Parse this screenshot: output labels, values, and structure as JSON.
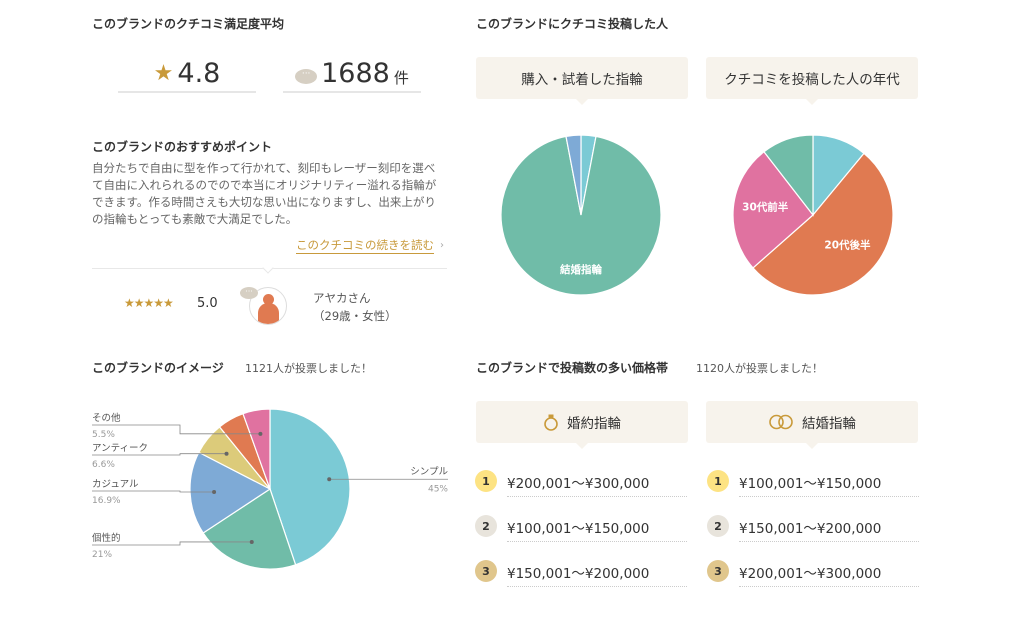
{
  "satisfaction": {
    "heading": "このブランドのクチコミ満足度平均",
    "rating": "4.8",
    "review_count": "1688",
    "review_unit": "件",
    "star_color": "#c99a3a"
  },
  "recommend": {
    "heading": "このブランドのおすすめポイント",
    "text": "自分たちで自由に型を作って行かれて、刻印もレーザー刻印を選べて自由に入れられるのでので本当にオリジナリティー溢れる指輪ができます。作る時間さえも大切な思い出になりますし、出来上がりの指輪もとっても素敵で大満足でした。",
    "read_more": "このクチコミの続きを読む",
    "reviewer_stars": "★★★★★",
    "reviewer_score": "5.0",
    "reviewer_name": "アヤカさん",
    "reviewer_info": "（29歳・女性）"
  },
  "posters": {
    "heading": "このブランドにクチコミ投稿した人",
    "tab_ring": "購入・試着した指輪",
    "tab_age": "クチコミを投稿した人の年代"
  },
  "image_section": {
    "heading": "このブランドのイメージ",
    "votes": "1121人が投票しました！"
  },
  "price_section": {
    "heading": "このブランドで投稿数の多い価格帯",
    "votes": "1120人が投票しました！",
    "engagement": {
      "label": "婚約指輪",
      "ranks": [
        {
          "rank": "1",
          "price": "¥200,001〜¥300,000"
        },
        {
          "rank": "2",
          "price": "¥100,001〜¥150,000"
        },
        {
          "rank": "3",
          "price": "¥150,001〜¥200,000"
        }
      ]
    },
    "wedding": {
      "label": "結婚指輪",
      "ranks": [
        {
          "rank": "1",
          "price": "¥100,001〜¥150,000"
        },
        {
          "rank": "2",
          "price": "¥150,001〜¥200,000"
        },
        {
          "rank": "3",
          "price": "¥200,001〜¥300,000"
        }
      ]
    },
    "rank_colors": [
      "#fde383",
      "#e8e4dc",
      "#e0c68c"
    ]
  },
  "chart_data": [
    {
      "type": "pie",
      "title": "購入・試着した指輪",
      "slices": [
        {
          "label": "",
          "value": 3,
          "color": "#7bcad5"
        },
        {
          "label": "結婚指輪",
          "value": 94,
          "color": "#70bca8"
        },
        {
          "label": "",
          "value": 3,
          "color": "#7eaad6"
        }
      ]
    },
    {
      "type": "pie",
      "title": "クチコミを投稿した人の年代",
      "slices": [
        {
          "label": "",
          "value": 11,
          "color": "#7bcad5"
        },
        {
          "label": "20代後半",
          "value": 52.5,
          "color": "#e07a51"
        },
        {
          "label": "30代前半",
          "value": 26,
          "color": "#e072a0"
        },
        {
          "label": "",
          "value": 10.5,
          "color": "#70bca8"
        }
      ]
    },
    {
      "type": "pie",
      "title": "このブランドのイメージ",
      "slices": [
        {
          "label": "シンプル",
          "pct": "45%",
          "value": 45,
          "color": "#7bcad5"
        },
        {
          "label": "個性的",
          "pct": "21%",
          "value": 21,
          "color": "#70bca8"
        },
        {
          "label": "カジュアル",
          "pct": "16.9%",
          "value": 16.9,
          "color": "#7eaad6"
        },
        {
          "label": "アンティーク",
          "pct": "6.6%",
          "value": 6.6,
          "color": "#dccb7a"
        },
        {
          "label": "",
          "value": 5.4,
          "color": "#e07a51"
        },
        {
          "label": "その他",
          "pct": "5.5%",
          "value": 5.5,
          "color": "#e072a0"
        }
      ]
    }
  ]
}
